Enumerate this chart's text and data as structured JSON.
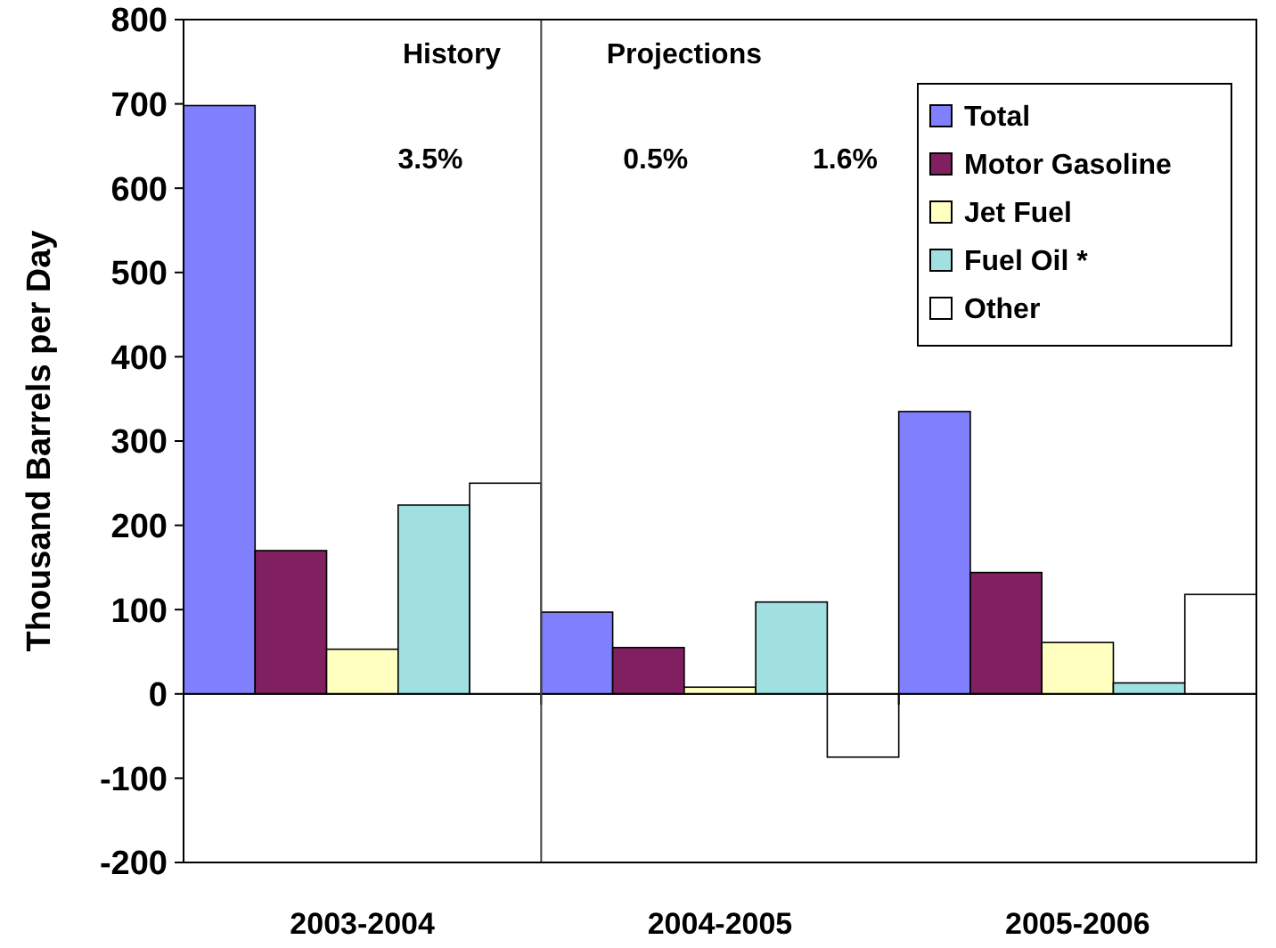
{
  "chart_data": {
    "type": "bar",
    "ylabel": "Thousand Barrels per Day",
    "categories": [
      "2003-2004",
      "2004-2005",
      "2005-2006"
    ],
    "series": [
      {
        "name": "Total",
        "color": "#8080ff",
        "values": [
          698,
          97,
          335
        ]
      },
      {
        "name": "Motor Gasoline",
        "color": "#802060",
        "values": [
          170,
          55,
          144
        ]
      },
      {
        "name": "Jet Fuel",
        "color": "#ffffc0",
        "values": [
          53,
          8,
          61
        ]
      },
      {
        "name": "Fuel Oil *",
        "color": "#a0e0e0",
        "values": [
          224,
          109,
          13
        ]
      },
      {
        "name": "Other",
        "color": "#ffffff",
        "values": [
          250,
          -75,
          118
        ]
      }
    ],
    "ylim": [
      -200,
      800
    ],
    "yticks": [
      -200,
      -100,
      0,
      100,
      200,
      300,
      400,
      500,
      600,
      700,
      800
    ],
    "legend": "top right",
    "annotations": [
      "History",
      "Projections",
      "3.5%",
      "0.5%",
      "1.6%"
    ]
  }
}
